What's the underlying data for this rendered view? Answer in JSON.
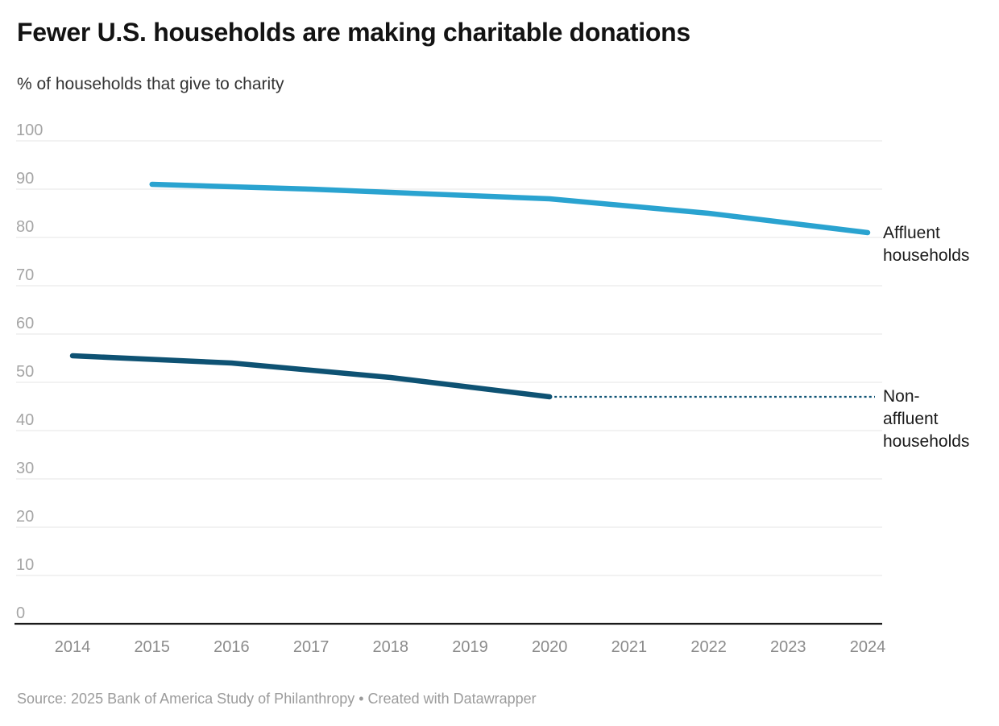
{
  "header": {
    "title": "Fewer U.S. households are making charitable donations",
    "subtitle": "% of households that give to charity"
  },
  "labels": {
    "affluent": "Affluent\nhouseholds",
    "non_affluent": "Non-\naffluent\nhouseholds"
  },
  "footer": {
    "source": "Source: 2025 Bank of America Study of Philanthropy • Created with Datawrapper"
  },
  "colors": {
    "affluent_line": "#2aa3d0",
    "non_affluent_line": "#0e5273",
    "gridline": "#e6e6e6",
    "zero_axis": "#1a1a1a",
    "y_tick_text": "#a5a5a5",
    "x_tick_text": "#8b8b8b",
    "label_text": "#1a1a1a",
    "source_text": "#9b9b9b"
  },
  "chart_data": {
    "type": "line",
    "title": "Fewer U.S. households are making charitable donations",
    "subtitle": "% of households that give to charity",
    "xlabel": "",
    "ylabel": "% of households that give to charity",
    "xlim": [
      2014,
      2024
    ],
    "ylim": [
      0,
      100
    ],
    "x_ticks": [
      2014,
      2015,
      2016,
      2017,
      2018,
      2019,
      2020,
      2021,
      2022,
      2023,
      2024
    ],
    "y_ticks": [
      0,
      10,
      20,
      30,
      40,
      50,
      60,
      70,
      80,
      90,
      100
    ],
    "grid": "horizontal",
    "legend_position": "direct-labels-right",
    "series": [
      {
        "name": "Affluent households",
        "color": "#2aa3d0",
        "style": "solid",
        "x": [
          2015,
          2017,
          2020,
          2022,
          2024
        ],
        "values": [
          91,
          90,
          88,
          85,
          81
        ]
      },
      {
        "name": "Non-affluent households",
        "color": "#0e5273",
        "style": "solid",
        "x": [
          2014,
          2016,
          2018,
          2020
        ],
        "values": [
          55.5,
          54,
          51,
          47
        ]
      }
    ],
    "projection": {
      "series": "Non-affluent households",
      "style": "dashed",
      "x": [
        2020,
        2024
      ],
      "values": [
        47,
        47
      ]
    }
  }
}
